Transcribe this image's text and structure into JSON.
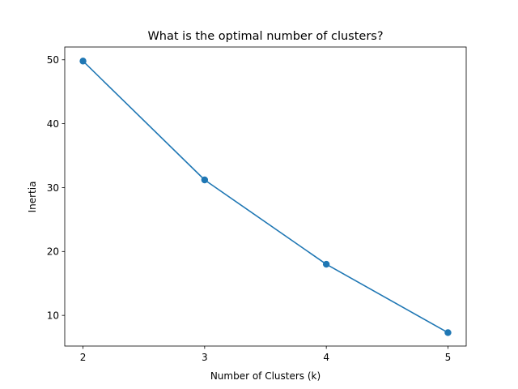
{
  "chart_data": {
    "type": "line",
    "title": "What is the optimal number of clusters?",
    "xlabel": "Number of Clusters (k)",
    "ylabel": "Inertia",
    "x": [
      2,
      3,
      4,
      5
    ],
    "series": [
      {
        "values": [
          49.8,
          31.2,
          18.0,
          7.3
        ],
        "color": "#1f77b4",
        "marker": "circle"
      }
    ],
    "xticks": [
      2,
      3,
      4,
      5
    ],
    "yticks": [
      10,
      20,
      30,
      40,
      50
    ],
    "xlim": [
      1.85,
      5.15
    ],
    "ylim": [
      5.2,
      52.0
    ],
    "grid": false,
    "legend": "none"
  }
}
